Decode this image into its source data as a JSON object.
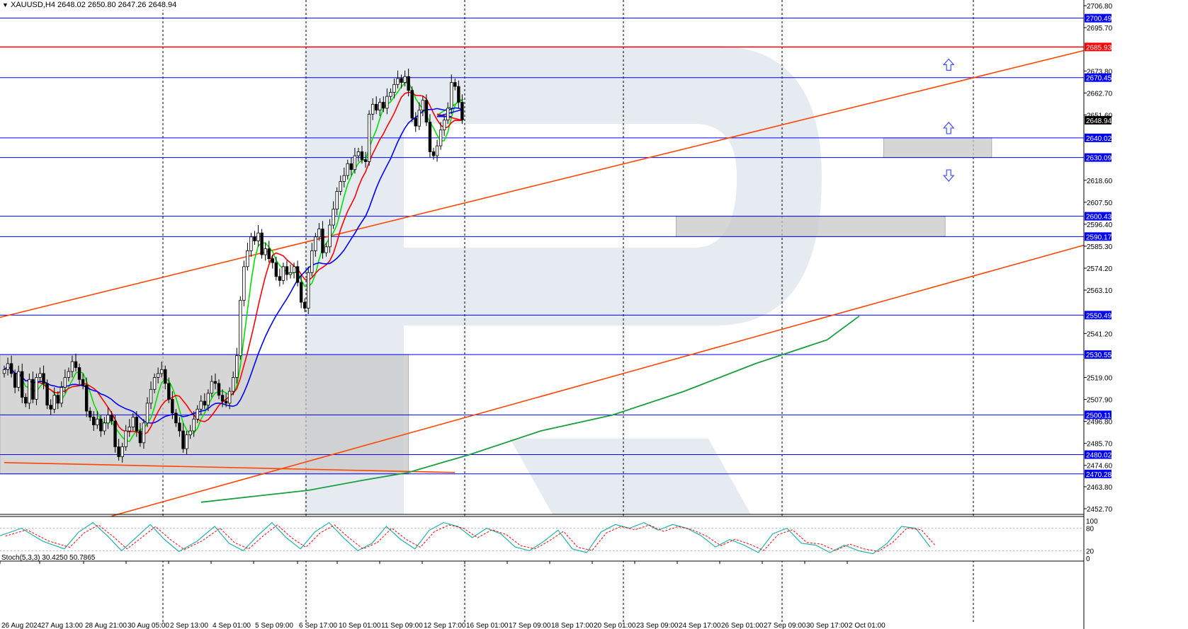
{
  "header": {
    "symbol": "XAUUSD,H4",
    "ohlc": "2648.02 2650.80 2647.26 2648.94",
    "triangle": "▼"
  },
  "stoch": {
    "label": "Stoch(5,3,3) 30.4250 50.7865",
    "scale": [
      "100",
      "80",
      "20",
      "0"
    ]
  },
  "colors": {
    "level_line": "#0000ff",
    "resistance_line": "#ff0000",
    "channel_line": "#ff4500",
    "zone_fill": "#c8c8c8",
    "ma_green": "#00e000",
    "ma_red": "#ff0000",
    "ma_blue": "#0000ff",
    "ma_long": "#1a9e3e",
    "stoch_main": "#20b2aa",
    "stoch_signal": "#ff0000",
    "arrow": "#3c50ff"
  },
  "chart_data": {
    "type": "candlestick",
    "ylim": [
      2452.7,
      2706.8
    ],
    "x_labels": [
      "26 Aug 2024",
      "27 Aug 13:00",
      "28 Aug 21:00",
      "30 Aug 05:00",
      "2 Sep 13:00",
      "4 Sep 01:00",
      "5 Sep 09:00",
      "6 Sep 17:00",
      "10 Sep 01:00",
      "11 Sep 09:00",
      "12 Sep 17:00",
      "16 Sep 01:00",
      "17 Sep 09:00",
      "18 Sep 17:00",
      "20 Sep 01:00",
      "23 Sep 09:00",
      "24 Sep 17:00",
      "26 Sep 01:00",
      "27 Sep 09:00",
      "30 Sep 17:00",
      "2 Oct 01:00"
    ],
    "y_ticks": [
      "2706.80",
      "2695.70",
      "2673.80",
      "2662.70",
      "2651.60",
      "2618.60",
      "2607.50",
      "2596.40",
      "2585.30",
      "2574.20",
      "2563.10",
      "2541.20",
      "2519.00",
      "2507.90",
      "2496.80",
      "2485.70",
      "2474.60",
      "2463.80",
      "2452.70"
    ],
    "levels": [
      {
        "label": "2700.49",
        "value": 2700.49,
        "color": "#0000ff"
      },
      {
        "label": "2685.93",
        "value": 2685.93,
        "color": "#ff0000"
      },
      {
        "label": "2670.45",
        "value": 2670.45,
        "color": "#0000ff"
      },
      {
        "label": "2640.02",
        "value": 2640.02,
        "color": "#0000ff"
      },
      {
        "label": "2630.09",
        "value": 2630.09,
        "color": "#0000ff"
      },
      {
        "label": "2600.43",
        "value": 2600.43,
        "color": "#0000ff"
      },
      {
        "label": "2590.17",
        "value": 2590.17,
        "color": "#0000ff"
      },
      {
        "label": "2550.49",
        "value": 2550.49,
        "color": "#0000ff"
      },
      {
        "label": "2530.55",
        "value": 2530.55,
        "color": "#0000ff"
      },
      {
        "label": "2500.11",
        "value": 2500.11,
        "color": "#0000ff"
      },
      {
        "label": "2480.02",
        "value": 2480.02,
        "color": "#0000ff"
      },
      {
        "label": "2470.28",
        "value": 2470.28,
        "color": "#0000ff"
      }
    ],
    "current_price": {
      "label": "2648.94",
      "value": 2648.94
    },
    "zones": [
      {
        "from_bar": 0,
        "to_bar": 113,
        "low": 2470.28,
        "high": 2530.55
      },
      {
        "from_bar": 189,
        "to_bar": 263,
        "low": 2590.17,
        "high": 2600.43
      },
      {
        "from_bar": 247,
        "to_bar": 276,
        "low": 2630.09,
        "high": 2640.02
      }
    ],
    "channel": {
      "upper": [
        [
          -2,
          2549.0
        ],
        [
          315,
          2690.0
        ]
      ],
      "lower": [
        [
          30,
          2449.0
        ],
        [
          328,
          2599.0
        ]
      ],
      "old_support": [
        [
          0,
          2476.0
        ],
        [
          126,
          2471.0
        ]
      ]
    },
    "arrows": [
      {
        "bar": 264,
        "price": 2677.0,
        "dir": "up"
      },
      {
        "bar": 264,
        "price": 2645.0,
        "dir": "up"
      },
      {
        "bar": 264,
        "price": 2621.0,
        "dir": "down"
      }
    ],
    "bars_closing": [
      2523,
      2526,
      2521,
      2514,
      2522,
      2509,
      2506,
      2518,
      2508,
      2519,
      2521,
      2516,
      2505,
      2503,
      2510,
      2506,
      2514,
      2519,
      2522,
      2527,
      2524,
      2518,
      2515,
      2502,
      2499,
      2495,
      2498,
      2492,
      2496,
      2500,
      2497,
      2484,
      2479,
      2484,
      2492,
      2494,
      2499,
      2492,
      2486,
      2496,
      2506,
      2513,
      2519,
      2521,
      2523,
      2516,
      2508,
      2501,
      2496,
      2492,
      2483,
      2490,
      2492,
      2498,
      2503,
      2507,
      2505,
      2511,
      2517,
      2516,
      2510,
      2507,
      2506,
      2512,
      2519,
      2530,
      2558,
      2575,
      2583,
      2590,
      2588,
      2592,
      2581,
      2584,
      2579,
      2577,
      2570,
      2568,
      2575,
      2571,
      2572,
      2575,
      2567,
      2557,
      2554,
      2572,
      2583,
      2590,
      2594,
      2582,
      2585,
      2596,
      2604,
      2613,
      2618,
      2621,
      2627,
      2624,
      2631,
      2633,
      2629,
      2628,
      2652,
      2657,
      2654,
      2658,
      2655,
      2661,
      2663,
      2667,
      2670,
      2668,
      2671,
      2664,
      2650,
      2646,
      2654,
      2659,
      2648,
      2633,
      2631,
      2636,
      2644,
      2649,
      2655,
      2668,
      2666,
      2658,
      2649
    ],
    "stoch_points": [
      [
        0,
        60
      ],
      [
        6,
        80
      ],
      [
        12,
        45
      ],
      [
        18,
        25
      ],
      [
        22,
        70
      ],
      [
        26,
        95
      ],
      [
        30,
        60
      ],
      [
        34,
        20
      ],
      [
        38,
        55
      ],
      [
        42,
        90
      ],
      [
        46,
        50
      ],
      [
        50,
        18
      ],
      [
        55,
        45
      ],
      [
        60,
        85
      ],
      [
        64,
        40
      ],
      [
        68,
        20
      ],
      [
        72,
        60
      ],
      [
        76,
        95
      ],
      [
        80,
        55
      ],
      [
        84,
        25
      ],
      [
        88,
        70
      ],
      [
        92,
        95
      ],
      [
        96,
        55
      ],
      [
        100,
        20
      ],
      [
        104,
        40
      ],
      [
        108,
        85
      ],
      [
        112,
        50
      ],
      [
        116,
        25
      ],
      [
        120,
        75
      ],
      [
        124,
        95
      ],
      [
        128,
        85
      ],
      [
        132,
        55
      ],
      [
        136,
        80
      ],
      [
        140,
        65
      ],
      [
        144,
        30
      ],
      [
        148,
        20
      ],
      [
        152,
        45
      ],
      [
        156,
        75
      ],
      [
        160,
        25
      ],
      [
        164,
        15
      ],
      [
        168,
        70
      ],
      [
        172,
        90
      ],
      [
        176,
        80
      ],
      [
        180,
        95
      ],
      [
        184,
        75
      ],
      [
        188,
        90
      ],
      [
        192,
        80
      ],
      [
        196,
        60
      ],
      [
        200,
        30
      ],
      [
        204,
        50
      ],
      [
        208,
        35
      ],
      [
        212,
        15
      ],
      [
        216,
        65
      ],
      [
        220,
        80
      ],
      [
        224,
        40
      ],
      [
        228,
        35
      ],
      [
        232,
        15
      ],
      [
        236,
        35
      ],
      [
        240,
        20
      ],
      [
        244,
        12
      ],
      [
        248,
        40
      ],
      [
        252,
        85
      ],
      [
        256,
        80
      ],
      [
        260,
        30
      ]
    ]
  }
}
